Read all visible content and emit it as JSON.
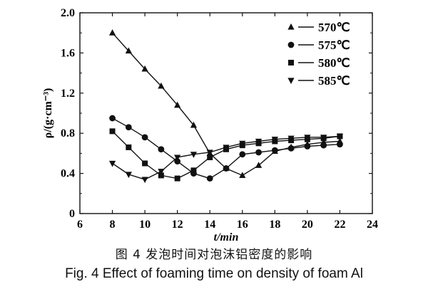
{
  "caption": {
    "chinese": "图 4   发泡时间对泡沫铝密度的影响",
    "english": "Fig. 4    Effect of foaming time on density of foam Al"
  },
  "chart_data": {
    "type": "line",
    "title": "",
    "xlabel": "t/min",
    "ylabel": "ρ/(g·cm⁻³)",
    "xlim": [
      6,
      24
    ],
    "ylim": [
      0,
      2.0
    ],
    "xticks": [
      "6",
      "8",
      "10",
      "12",
      "14",
      "16",
      "18",
      "20",
      "22",
      "24"
    ],
    "yticks": [
      "0",
      "0.4",
      "0.8",
      "1.2",
      "1.6",
      "2.0"
    ],
    "grid": false,
    "legend_position": "top-right",
    "x": [
      8,
      9,
      10,
      11,
      12,
      13,
      14,
      15,
      16,
      17,
      18,
      19,
      20,
      21,
      22
    ],
    "series": [
      {
        "name": "570℃",
        "marker": "triangle-up",
        "values": [
          1.8,
          1.62,
          1.44,
          1.27,
          1.08,
          0.88,
          0.6,
          0.45,
          0.38,
          0.48,
          0.62,
          0.66,
          0.69,
          0.71,
          0.72
        ]
      },
      {
        "name": "575℃",
        "marker": "circle",
        "values": [
          0.95,
          0.86,
          0.76,
          0.64,
          0.52,
          0.4,
          0.35,
          0.45,
          0.59,
          0.61,
          0.63,
          0.65,
          0.67,
          0.68,
          0.69
        ]
      },
      {
        "name": "580℃",
        "marker": "square",
        "values": [
          0.82,
          0.66,
          0.5,
          0.38,
          0.35,
          0.43,
          0.56,
          0.64,
          0.68,
          0.7,
          0.72,
          0.73,
          0.74,
          0.75,
          0.77
        ]
      },
      {
        "name": "585℃",
        "marker": "triangle-down",
        "values": [
          0.5,
          0.39,
          0.34,
          0.42,
          0.56,
          0.59,
          0.61,
          0.66,
          0.7,
          0.72,
          0.74,
          0.75,
          0.76,
          0.76,
          0.77
        ]
      }
    ]
  }
}
